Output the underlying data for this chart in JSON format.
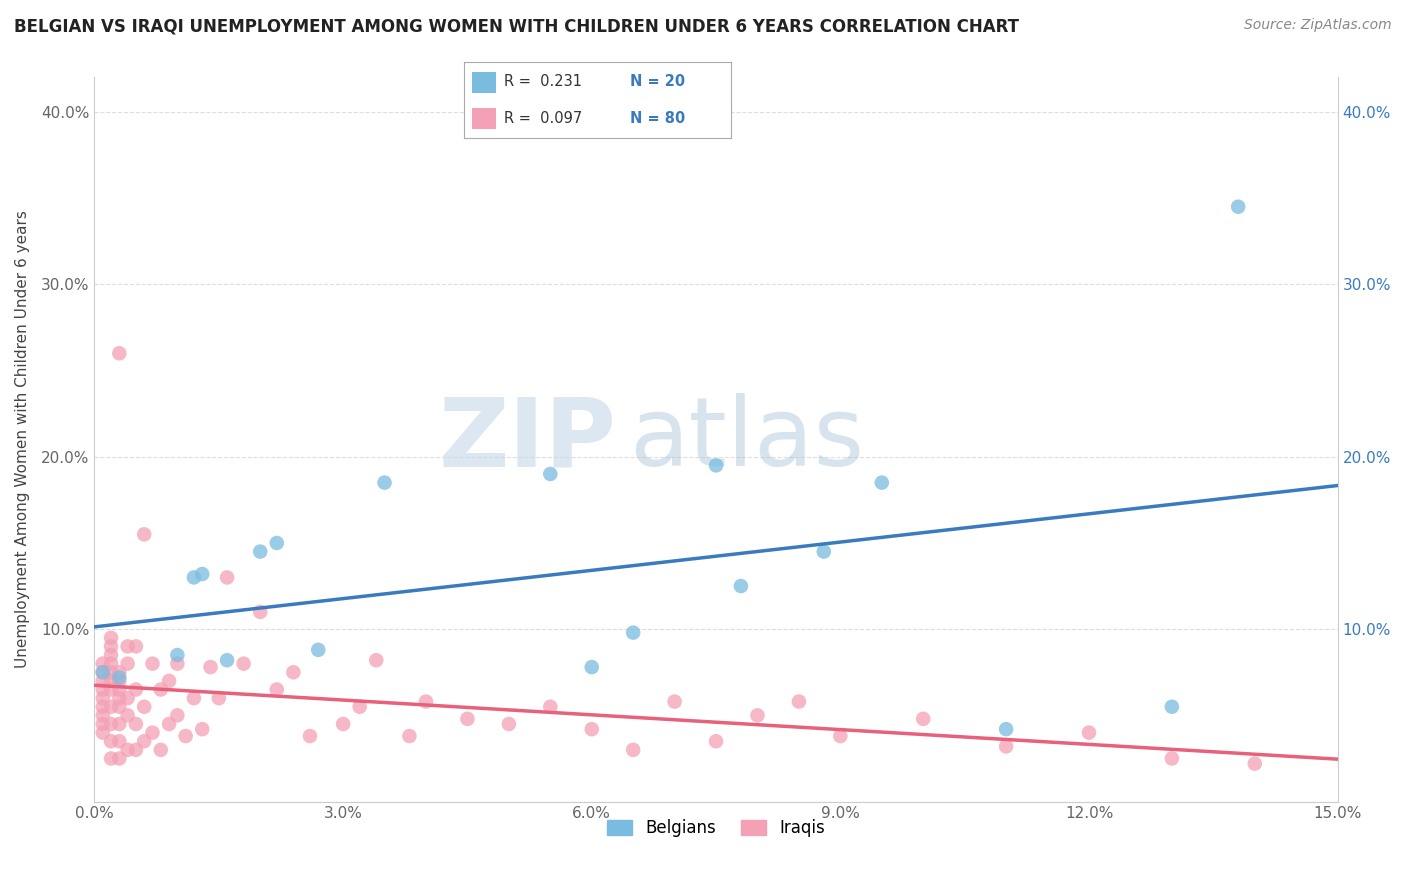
{
  "title": "BELGIAN VS IRAQI UNEMPLOYMENT AMONG WOMEN WITH CHILDREN UNDER 6 YEARS CORRELATION CHART",
  "source": "Source: ZipAtlas.com",
  "ylabel": "Unemployment Among Women with Children Under 6 years",
  "xlim": [
    0.0,
    0.15
  ],
  "ylim": [
    0.0,
    0.42
  ],
  "xticks": [
    0.0,
    0.03,
    0.06,
    0.09,
    0.12,
    0.15
  ],
  "yticks": [
    0.0,
    0.1,
    0.2,
    0.3,
    0.4
  ],
  "xtick_labels": [
    "0.0%",
    "3.0%",
    "6.0%",
    "9.0%",
    "12.0%",
    "15.0%"
  ],
  "ytick_labels": [
    "",
    "10.0%",
    "20.0%",
    "30.0%",
    "40.0%"
  ],
  "belgian_color": "#7abce0",
  "iraqi_color": "#f4a0b5",
  "belgian_line_color": "#3a7bbf",
  "iraqi_line_color": "#e8607a",
  "legend_R_belgian": "R =  0.231",
  "legend_N_belgian": "N = 20",
  "legend_R_iraqi": "R =  0.097",
  "legend_N_iraqi": "N = 80",
  "legend_color": "#3a7bbf",
  "watermark_top": "ZIP",
  "watermark_bot": "atlas",
  "watermark_color_zip": "#c8d8e8",
  "watermark_color_atlas": "#b0c8d8",
  "belgian_label": "Belgians",
  "iraqi_label": "Iraqis",
  "belgian_x": [
    0.001,
    0.003,
    0.01,
    0.012,
    0.013,
    0.016,
    0.02,
    0.022,
    0.027,
    0.035,
    0.055,
    0.06,
    0.065,
    0.075,
    0.078,
    0.088,
    0.095,
    0.11,
    0.13,
    0.138
  ],
  "belgian_y": [
    0.075,
    0.072,
    0.085,
    0.13,
    0.132,
    0.082,
    0.145,
    0.15,
    0.088,
    0.185,
    0.19,
    0.078,
    0.098,
    0.195,
    0.125,
    0.145,
    0.185,
    0.042,
    0.055,
    0.345
  ],
  "iraqi_x": [
    0.001,
    0.001,
    0.001,
    0.001,
    0.001,
    0.001,
    0.001,
    0.001,
    0.001,
    0.002,
    0.002,
    0.002,
    0.002,
    0.002,
    0.002,
    0.002,
    0.002,
    0.002,
    0.002,
    0.002,
    0.003,
    0.003,
    0.003,
    0.003,
    0.003,
    0.003,
    0.003,
    0.003,
    0.003,
    0.004,
    0.004,
    0.004,
    0.004,
    0.004,
    0.005,
    0.005,
    0.005,
    0.005,
    0.006,
    0.006,
    0.006,
    0.007,
    0.007,
    0.008,
    0.008,
    0.009,
    0.009,
    0.01,
    0.01,
    0.011,
    0.012,
    0.013,
    0.014,
    0.015,
    0.016,
    0.018,
    0.02,
    0.022,
    0.024,
    0.026,
    0.03,
    0.032,
    0.034,
    0.038,
    0.04,
    0.045,
    0.05,
    0.055,
    0.06,
    0.065,
    0.07,
    0.075,
    0.08,
    0.085,
    0.09,
    0.1,
    0.11,
    0.12,
    0.13,
    0.14
  ],
  "iraqi_y": [
    0.04,
    0.045,
    0.05,
    0.055,
    0.06,
    0.065,
    0.07,
    0.075,
    0.08,
    0.025,
    0.035,
    0.045,
    0.055,
    0.065,
    0.07,
    0.075,
    0.08,
    0.085,
    0.09,
    0.095,
    0.025,
    0.035,
    0.045,
    0.055,
    0.06,
    0.065,
    0.07,
    0.075,
    0.26,
    0.03,
    0.05,
    0.06,
    0.08,
    0.09,
    0.03,
    0.045,
    0.065,
    0.09,
    0.035,
    0.055,
    0.155,
    0.04,
    0.08,
    0.03,
    0.065,
    0.045,
    0.07,
    0.05,
    0.08,
    0.038,
    0.06,
    0.042,
    0.078,
    0.06,
    0.13,
    0.08,
    0.11,
    0.065,
    0.075,
    0.038,
    0.045,
    0.055,
    0.082,
    0.038,
    0.058,
    0.048,
    0.045,
    0.055,
    0.042,
    0.03,
    0.058,
    0.035,
    0.05,
    0.058,
    0.038,
    0.048,
    0.032,
    0.04,
    0.025,
    0.022
  ]
}
